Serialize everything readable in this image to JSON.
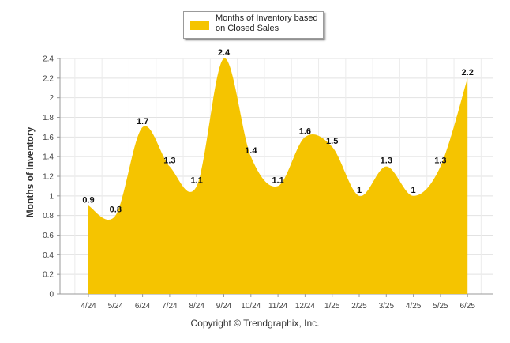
{
  "chart_data": {
    "type": "area",
    "categories": [
      "4/24",
      "5/24",
      "6/24",
      "7/24",
      "8/24",
      "9/24",
      "10/24",
      "11/24",
      "12/24",
      "1/25",
      "2/25",
      "3/25",
      "4/25",
      "5/25",
      "6/25"
    ],
    "series": [
      {
        "name": "Months of Inventory based on Closed Sales",
        "values": [
          0.9,
          0.8,
          1.7,
          1.3,
          1.1,
          2.4,
          1.4,
          1.1,
          1.6,
          1.5,
          1,
          1.3,
          1,
          1.3,
          2.2
        ],
        "color": "#f5c400"
      }
    ],
    "data_labels": [
      "0.9",
      "0.8",
      "1.7",
      "1.3",
      "1.1",
      "2.4",
      "1.4",
      "1.1",
      "1.6",
      "1.5",
      "1",
      "1.3",
      "1",
      "1.3",
      "2.2"
    ],
    "ylabel": "Months of Inventory",
    "xlabel": "",
    "ylim": [
      0,
      2.4
    ],
    "yticks": [
      "0",
      "0.2",
      "0.4",
      "0.6",
      "0.8",
      "1",
      "1.2",
      "1.4",
      "1.6",
      "1.8",
      "2",
      "2.2",
      "2.4"
    ],
    "grid": true,
    "legend_position": "top"
  },
  "legend": {
    "label": "Months of Inventory based on Closed Sales",
    "swatch_color": "#f5c400"
  },
  "footer": {
    "copyright": "Copyright © Trendgraphix, Inc."
  }
}
